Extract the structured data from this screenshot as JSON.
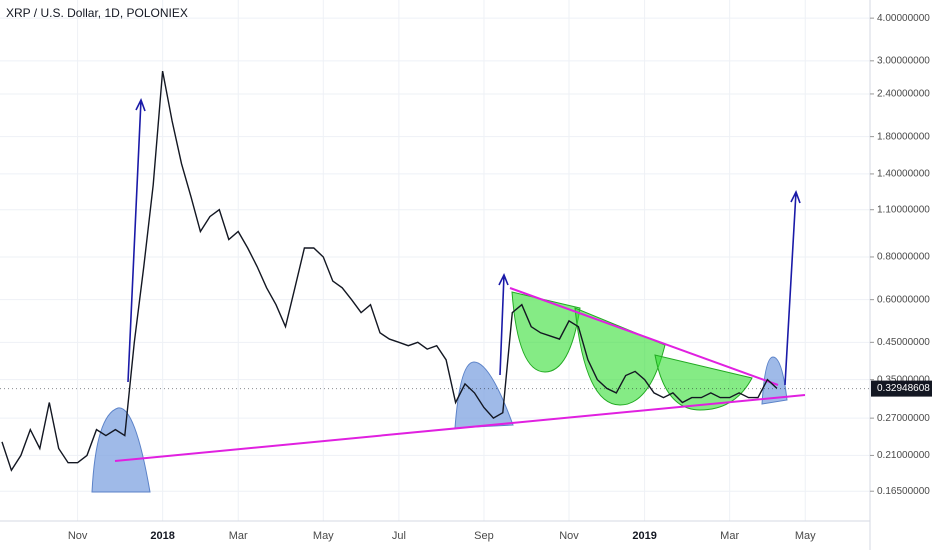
{
  "chart_data": {
    "type": "line",
    "title": "XRP / U.S. Dollar, 1D, POLONIEX",
    "categories": [
      null,
      null,
      null,
      null,
      null,
      null,
      null,
      null,
      "Nov",
      null,
      null,
      null,
      null,
      null,
      null,
      null,
      null,
      "2018",
      null,
      null,
      null,
      null,
      null,
      null,
      null,
      "Mar",
      null,
      null,
      null,
      null,
      null,
      null,
      null,
      null,
      "May",
      null,
      null,
      null,
      null,
      null,
      null,
      null,
      "Jul",
      null,
      null,
      null,
      null,
      null,
      null,
      null,
      null,
      "Sep",
      null,
      null,
      null,
      null,
      null,
      null,
      null,
      null,
      "Nov",
      null,
      null,
      null,
      null,
      null,
      null,
      null,
      "2019",
      null,
      null,
      null,
      null,
      null,
      null,
      null,
      null,
      "Mar",
      null,
      null,
      null,
      null,
      null,
      null,
      null,
      "May"
    ],
    "values": [
      0.23,
      0.19,
      0.21,
      0.25,
      0.22,
      0.3,
      0.22,
      0.2,
      0.2,
      0.21,
      0.25,
      0.24,
      0.25,
      0.24,
      0.45,
      0.75,
      1.3,
      2.8,
      2.0,
      1.5,
      1.2,
      0.95,
      1.05,
      1.1,
      0.9,
      0.95,
      0.85,
      0.75,
      0.65,
      0.58,
      0.5,
      0.65,
      0.85,
      0.85,
      0.8,
      0.68,
      0.65,
      0.6,
      0.55,
      0.58,
      0.48,
      0.46,
      0.45,
      0.44,
      0.45,
      0.43,
      0.44,
      0.4,
      0.3,
      0.34,
      0.32,
      0.29,
      0.27,
      0.28,
      0.55,
      0.58,
      0.5,
      0.48,
      0.47,
      0.46,
      0.52,
      0.5,
      0.4,
      0.35,
      0.33,
      0.32,
      0.36,
      0.37,
      0.35,
      0.32,
      0.31,
      0.32,
      0.3,
      0.31,
      0.31,
      0.32,
      0.31,
      0.31,
      0.32,
      0.31,
      0.31,
      0.35,
      0.33,
      null,
      null,
      null
    ],
    "color": "#131722",
    "log_scale": true,
    "grid": true,
    "ylim": [
      0.135,
      4.52
    ],
    "yticks": [
      {
        "value": 0.165,
        "label": "0.16500000"
      },
      {
        "value": 0.21,
        "label": "0.21000000"
      },
      {
        "value": 0.27,
        "label": "0.27000000"
      },
      {
        "value": 0.35,
        "label": "0.35000000"
      },
      {
        "value": 0.45,
        "label": "0.45000000"
      },
      {
        "value": 0.6,
        "label": "0.60000000"
      },
      {
        "value": 0.8,
        "label": "0.80000000"
      },
      {
        "value": 1.1,
        "label": "1.10000000"
      },
      {
        "value": 1.4,
        "label": "1.40000000"
      },
      {
        "value": 1.8,
        "label": "1.80000000"
      },
      {
        "value": 2.4,
        "label": "2.40000000"
      },
      {
        "value": 3,
        "label": "3.00000000"
      },
      {
        "value": 4,
        "label": "4.00000000"
      }
    ],
    "last_price": 0.32948608
  }
}
